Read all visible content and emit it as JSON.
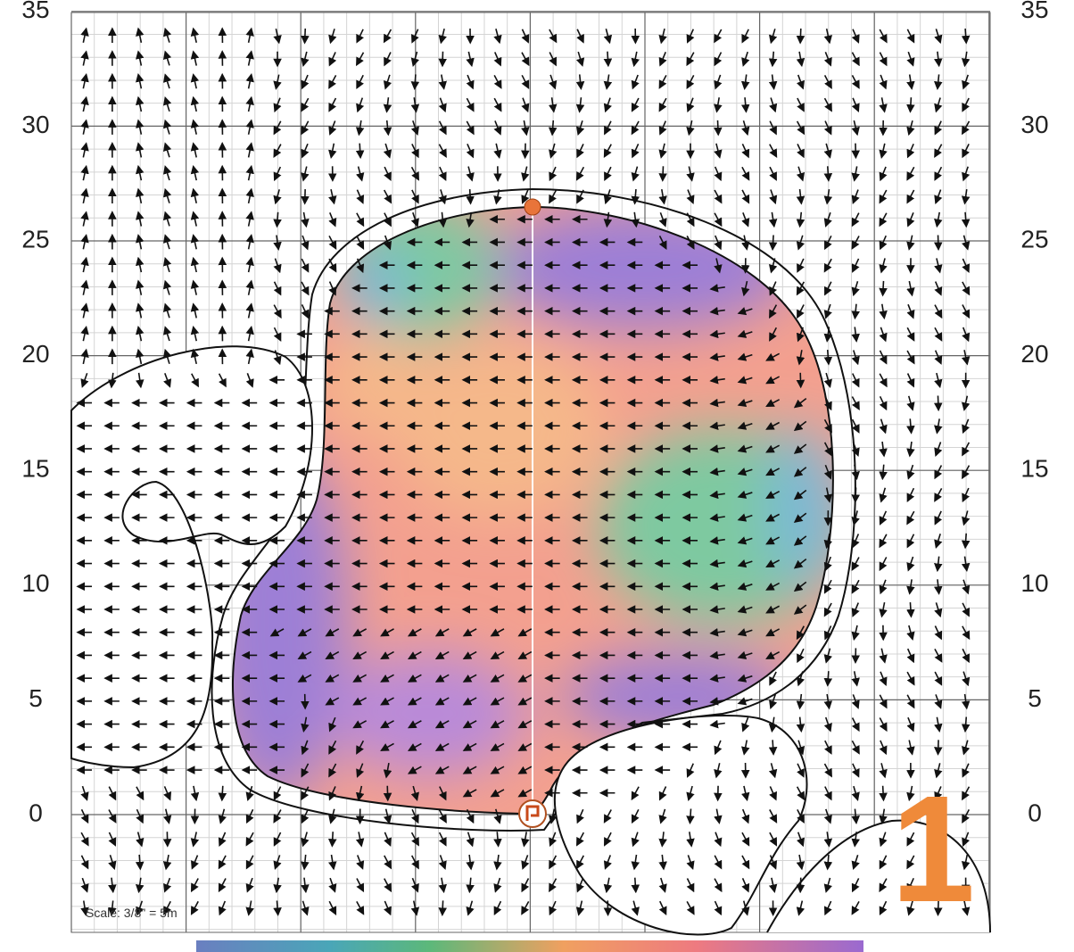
{
  "axis": {
    "labels": [
      35,
      30,
      25,
      20,
      15,
      10,
      5,
      0
    ]
  },
  "scale_note": "Scale: 3/8\" = 5m",
  "hole_number": "1"
}
